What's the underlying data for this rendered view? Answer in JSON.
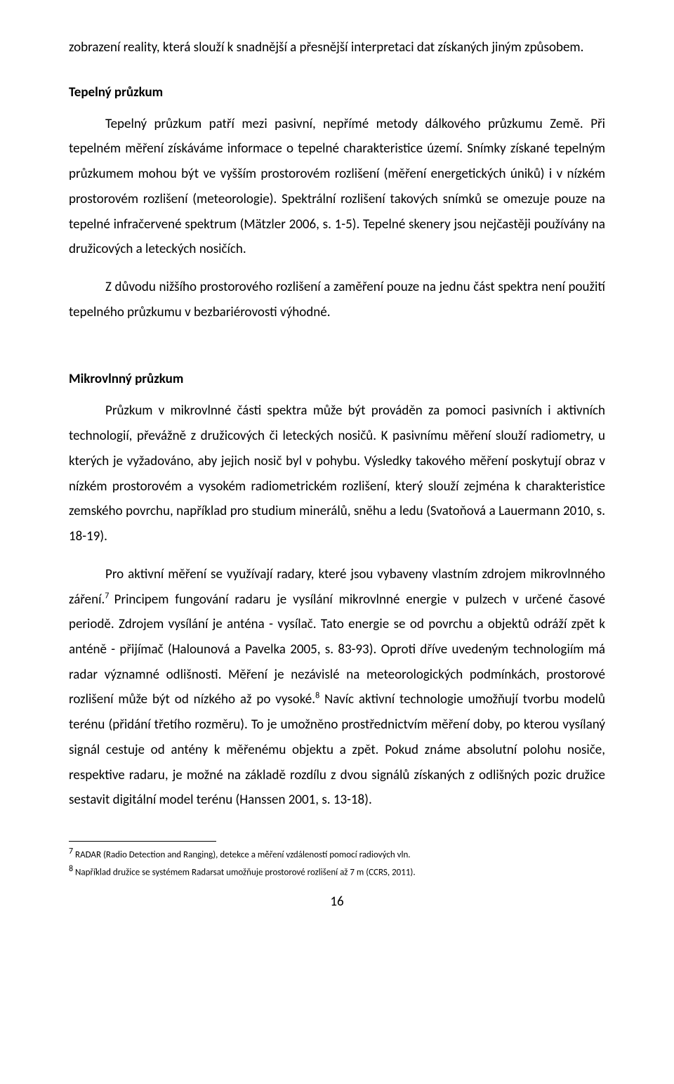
{
  "para1": "zobrazení reality, která slouží k snadnější a přesnější interpretaci dat získaných jiným způsobem.",
  "heading1": "Tepelný průzkum",
  "para2": "Tepelný průzkum patří mezi pasivní, nepřímé metody dálkového průzkumu Země. Při tepelném měření získáváme informace o tepelné charakteristice území. Snímky získané tepelným průzkumem mohou být ve vyšším prostorovém rozlišení (měření energetických úniků) i v nízkém prostorovém rozlišení (meteorologie). Spektrální rozlišení takových snímků se omezuje pouze na tepelné infračervené spektrum (Mätzler 2006, s. 1-5). Tepelné skenery jsou nejčastěji používány na družicových a leteckých nosičích.",
  "para3": "Z důvodu nižšího prostorového rozlišení a zaměření pouze na jednu část spektra není použití tepelného průzkumu v bezbariérovosti výhodné.",
  "heading2": "Mikrovlnný průzkum",
  "para4": "Průzkum v mikrovlnné části spektra může být prováděn za pomoci pasivních i aktivních technologií, převážně z družicových či leteckých nosičů. K pasivnímu měření slouží radiometry, u kterých je vyžadováno, aby jejich nosič byl v pohybu. Výsledky takového měření poskytují obraz v nízkém prostorovém a vysokém radiometrickém rozlišení, který slouží zejména k charakteristice zemského povrchu, například pro studium minerálů, sněhu a ledu (Svatoňová a Lauermann 2010, s. 18-19).",
  "para5_a": "Pro aktivní měření se využívají radary, které jsou vybaveny vlastním zdrojem mikrovlnného záření.",
  "para5_b": "Principem fungování radaru je vysílání mikrovlnné energie v pulzech v určené časové periodě. Zdrojem vysílání je anténa - vysílač. Tato energie se od povrchu a objektů odráží zpět k anténě - přijímač (Halounová a Pavelka 2005,  s. 83-93). Oproti dříve uvedeným technologiím má radar významné odlišnosti. Měření je nezávislé na meteorologických podmínkách, prostorové rozlišení může být od nízkého až po vysoké.",
  "para5_c": "Navíc aktivní technologie umožňují tvorbu modelů terénu (přidání třetího rozměru). To je umožněno prostřednictvím měření doby, po kterou vysílaný signál cestuje od antény k měřenému objektu a zpět. Pokud známe absolutní polohu nosiče, respektive radaru, je možné na základě rozdílu z dvou signálů získaných z odlišných pozic družice sestavit digitální model terénu (Hanssen 2001, s. 13-18).",
  "fn7_mark": "7",
  "fn7": " RADAR (Radio Detection and Ranging), detekce a měření vzdáleností pomocí radiových vln.",
  "fn8_mark": "8",
  "fn8": " Například družice se systémem Radarsat umožňuje prostorové rozlišení až 7 m (CCRS, 2011).",
  "sup7": "7 ",
  "sup8": "8",
  "pageNumber": "16"
}
